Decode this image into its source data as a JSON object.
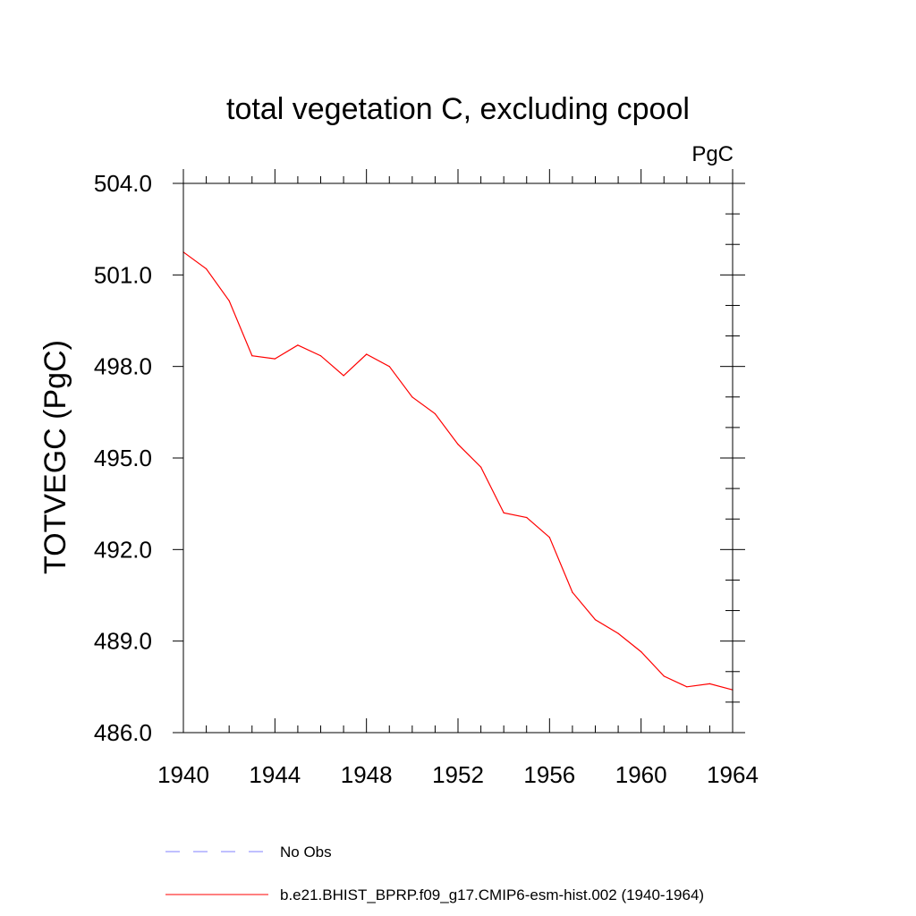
{
  "chart_data": {
    "type": "line",
    "title": "total vegetation C, excluding cpool",
    "units_label": "PgC",
    "ylabel": "TOTVEGC  (PgC)",
    "xlabel": "",
    "xlim": [
      1940,
      1964
    ],
    "ylim": [
      486.0,
      504.0
    ],
    "x_ticks": [
      1940,
      1944,
      1948,
      1952,
      1956,
      1960,
      1964
    ],
    "x_tick_labels": [
      "1940",
      "1944",
      "1948",
      "1952",
      "1956",
      "1960",
      "1964"
    ],
    "y_ticks": [
      486.0,
      489.0,
      492.0,
      495.0,
      498.0,
      501.0,
      504.0
    ],
    "y_tick_labels": [
      "486.0",
      "489.0",
      "492.0",
      "495.0",
      "498.0",
      "501.0",
      "504.0"
    ],
    "x_minor_step": 1,
    "y_minor_step": 1,
    "grid": false,
    "legend_position": "bottom",
    "series": [
      {
        "name": "b.e21.BHIST_BPRP.f09_g17.CMIP6-esm-hist.002 (1940-1964)",
        "color": "#ff0000",
        "style": "solid",
        "x": [
          1940,
          1941,
          1942,
          1943,
          1944,
          1945,
          1946,
          1947,
          1948,
          1949,
          1950,
          1951,
          1952,
          1953,
          1954,
          1955,
          1956,
          1957,
          1958,
          1959,
          1960,
          1961,
          1962,
          1963,
          1964
        ],
        "values": [
          501.75,
          501.2,
          500.15,
          498.35,
          498.25,
          498.7,
          498.35,
          497.7,
          498.4,
          498.0,
          497.0,
          496.45,
          495.45,
          494.7,
          493.2,
          493.05,
          492.4,
          490.6,
          489.7,
          489.25,
          488.65,
          487.85,
          487.5,
          487.6,
          487.4
        ]
      }
    ],
    "legend": [
      {
        "label": "No Obs",
        "color": "#8080ff",
        "style": "dashed"
      },
      {
        "label": "b.e21.BHIST_BPRP.f09_g17.CMIP6-esm-hist.002 (1940-1964)",
        "color": "#ff0000",
        "style": "solid"
      }
    ]
  }
}
